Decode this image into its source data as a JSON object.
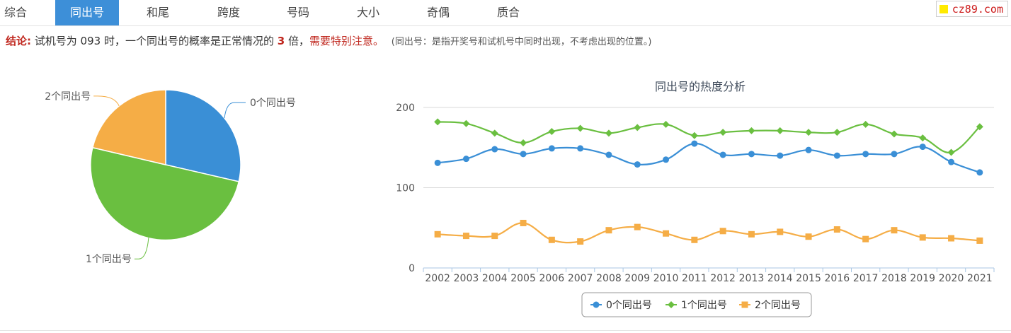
{
  "tabs": [
    "综合",
    "同出号",
    "和尾",
    "跨度",
    "号码",
    "大小",
    "奇偶",
    "质合"
  ],
  "active_tab": 1,
  "brand": "cz89.com",
  "conclusion": {
    "label": "结论:",
    "text_a": "试机号为 093 时，一个同出号的概率是正常情况的",
    "multiple": "3",
    "text_b": "倍，",
    "warning": "需要特别注意。",
    "note": "(同出号：是指开奖号和试机号中同时出现，不考虑出现的位置。)"
  },
  "colors": {
    "zero": "#3a8fd6",
    "one": "#6abf40",
    "two": "#f5ad46",
    "tab_active": "#3d8fd8",
    "warn": "#c0281f"
  },
  "chart_data": [
    {
      "type": "pie",
      "labels": [
        "0个同出号",
        "1个同出号",
        "2个同出号"
      ],
      "values": [
        2862,
        5005,
        2133
      ],
      "start_angle_deg": 0
    },
    {
      "type": "line",
      "title": "同出号的热度分析",
      "x": [
        "2002",
        "2003",
        "2004",
        "2005",
        "2006",
        "2007",
        "2008",
        "2009",
        "2010",
        "2011",
        "2012",
        "2013",
        "2014",
        "2015",
        "2016",
        "2017",
        "2018",
        "2019",
        "2020",
        "2021"
      ],
      "series": [
        {
          "name": "0个同出号",
          "marker": "circle",
          "values": [
            131,
            136,
            148,
            142,
            149,
            149,
            141,
            129,
            135,
            155,
            141,
            142,
            140,
            147,
            140,
            142,
            142,
            151,
            132,
            119
          ]
        },
        {
          "name": "1个同出号",
          "marker": "diamond",
          "values": [
            182,
            180,
            168,
            156,
            170,
            174,
            168,
            175,
            179,
            165,
            169,
            171,
            171,
            169,
            169,
            179,
            167,
            162,
            144,
            176
          ]
        },
        {
          "name": "2个同出号",
          "marker": "square",
          "values": [
            42,
            40,
            40,
            56,
            35,
            33,
            47,
            51,
            43,
            35,
            46,
            42,
            45,
            39,
            48,
            36,
            47,
            38,
            37,
            34
          ]
        }
      ],
      "yticks": [
        0,
        100,
        200
      ],
      "ylim": [
        0,
        200
      ],
      "legend_position": "bottom",
      "grid": true
    }
  ]
}
